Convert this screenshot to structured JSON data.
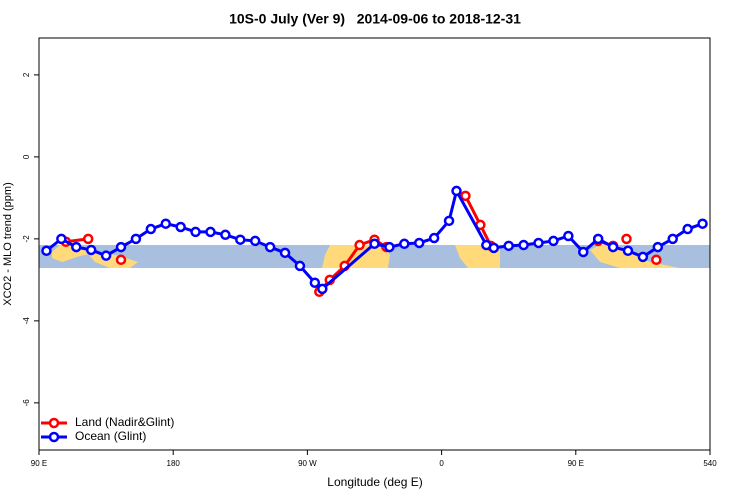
{
  "chart_data": {
    "type": "line",
    "title": "10S-0 July (Ver 9)   2014-09-06 to 2018-12-31",
    "x_label": "Longitude (deg E)",
    "y_label": "XCO2 - MLO trend (ppm)",
    "xlim": [
      90,
      540
    ],
    "xticks": [
      {
        "value": 90,
        "label": "90 E"
      },
      180,
      {
        "value": 270,
        "label": "90 W"
      },
      {
        "value": 360,
        "label": "0"
      },
      {
        "value": 450,
        "label": "90 E"
      },
      540
    ],
    "ylim": [
      -7.15,
      2.9
    ],
    "yticks": [
      2,
      0,
      -2,
      -4,
      -6
    ],
    "legend": "bottom-left",
    "series": [
      {
        "name": "Land (Nadir&Glint)",
        "color": "#ff0000",
        "x": [
          108,
          123,
          null,
          145,
          null,
          278,
          285,
          295,
          305,
          315,
          323,
          null,
          376,
          386,
          393,
          null,
          465,
          475,
          null,
          484,
          null,
          504
        ],
        "values": [
          -2.07,
          -2.0,
          null,
          -2.51,
          null,
          -3.29,
          -3.0,
          -2.66,
          -2.15,
          -2.02,
          -2.2,
          null,
          -0.95,
          -1.66,
          -2.17,
          null,
          -2.05,
          -2.17,
          null,
          -2.0,
          null,
          -2.51
        ]
      },
      {
        "name": "Ocean (Glint)",
        "color": "#0000ff",
        "x": [
          95,
          105,
          115,
          125,
          135,
          145,
          155,
          165,
          175,
          185,
          195,
          205,
          215,
          225,
          235,
          245,
          255,
          265,
          275,
          280,
          315,
          325,
          335,
          345,
          355,
          365,
          370,
          390,
          395,
          405,
          415,
          425,
          435,
          445,
          455,
          465,
          475,
          485,
          495,
          505,
          515,
          525,
          535
        ],
        "values": [
          -2.29,
          -2.0,
          -2.2,
          -2.27,
          -2.41,
          -2.2,
          -2.0,
          -1.76,
          -1.63,
          -1.71,
          -1.83,
          -1.83,
          -1.9,
          -2.02,
          -2.05,
          -2.2,
          -2.34,
          -2.66,
          -3.07,
          -3.22,
          -2.12,
          -2.2,
          -2.12,
          -2.1,
          -1.98,
          -1.56,
          -0.83,
          -2.15,
          -2.22,
          -2.17,
          -2.15,
          -2.1,
          -2.05,
          -1.93,
          -2.32,
          -2.0,
          -2.2,
          -2.29,
          -2.44,
          -2.2,
          -2.0,
          -1.76,
          -1.63
        ]
      }
    ]
  }
}
